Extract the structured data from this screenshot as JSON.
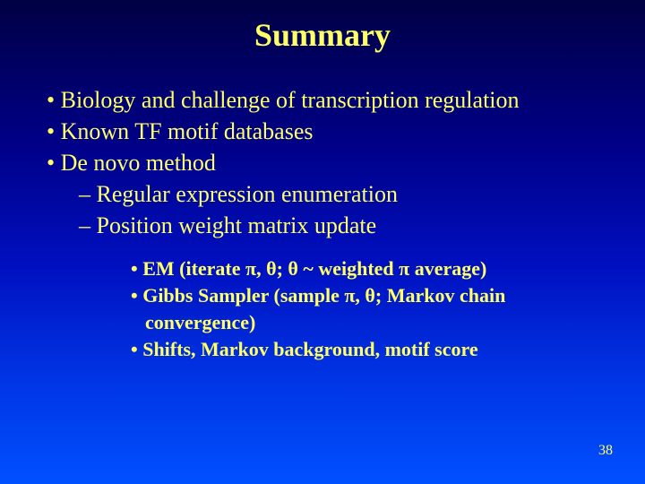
{
  "slide": {
    "title": "Summary",
    "background_gradient": [
      "#000044",
      "#000088",
      "#0010c0",
      "#0030e0",
      "#0050ff"
    ],
    "text_color": "#ffff66",
    "title_fontsize": 36,
    "body_fontsize": 26,
    "sub_fontsize": 22,
    "font_family": "Times New Roman",
    "bullets_l1": [
      "Biology and challenge of transcription regulation",
      "Known TF motif databases",
      "De novo method"
    ],
    "bullets_l2": [
      "Regular expression enumeration",
      "Position weight matrix update"
    ],
    "bullets_l3": [
      "EM (iterate π, θ; θ ~ weighted π average)",
      "Gibbs Sampler (sample π, θ; Markov chain convergence)",
      "Shifts, Markov background, motif score"
    ],
    "page_number": "38"
  }
}
